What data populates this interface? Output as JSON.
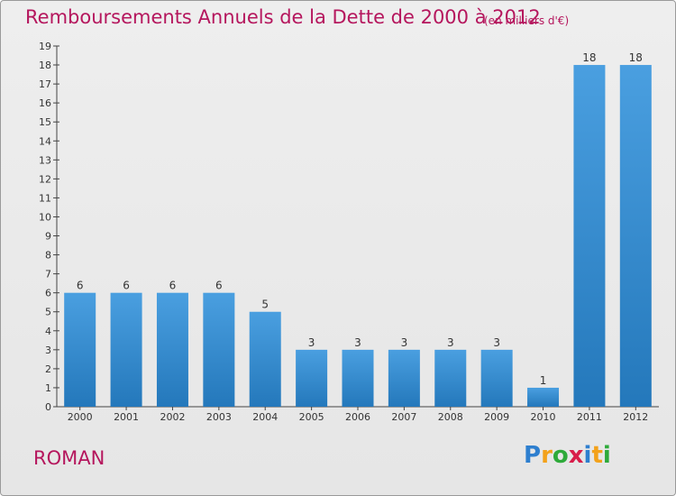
{
  "title": "Remboursements Annuels de la Dette de 2000 à 2012",
  "unit_note": "(en milliers d'€)",
  "town": "ROMAN",
  "logo": {
    "letters": [
      "P",
      "r",
      "o",
      "x",
      "i",
      "t",
      "i"
    ],
    "colors": [
      "#2e7fcf",
      "#f3a21b",
      "#2eaa3a",
      "#d81d4a",
      "#2e7fcf",
      "#f3a21b",
      "#2eaa3a"
    ]
  },
  "colors": {
    "bar": "#4a9fe0",
    "bar_dark": "#2478bb",
    "title": "#b5165d"
  },
  "chart_data": {
    "type": "bar",
    "categories": [
      "2000",
      "2001",
      "2002",
      "2003",
      "2004",
      "2005",
      "2006",
      "2007",
      "2008",
      "2009",
      "2010",
      "2011",
      "2012"
    ],
    "values": [
      6,
      6,
      6,
      6,
      5,
      3,
      3,
      3,
      3,
      3,
      1,
      18,
      18
    ],
    "data_labels": [
      "6",
      "6",
      "6",
      "6",
      "5",
      "3",
      "3",
      "3",
      "3",
      "3",
      "1",
      "18",
      "18"
    ],
    "ylim": [
      0,
      19
    ],
    "yticks": [
      0,
      1,
      2,
      3,
      4,
      5,
      6,
      7,
      8,
      9,
      10,
      11,
      12,
      13,
      14,
      15,
      16,
      17,
      18,
      19
    ],
    "grid": false
  }
}
